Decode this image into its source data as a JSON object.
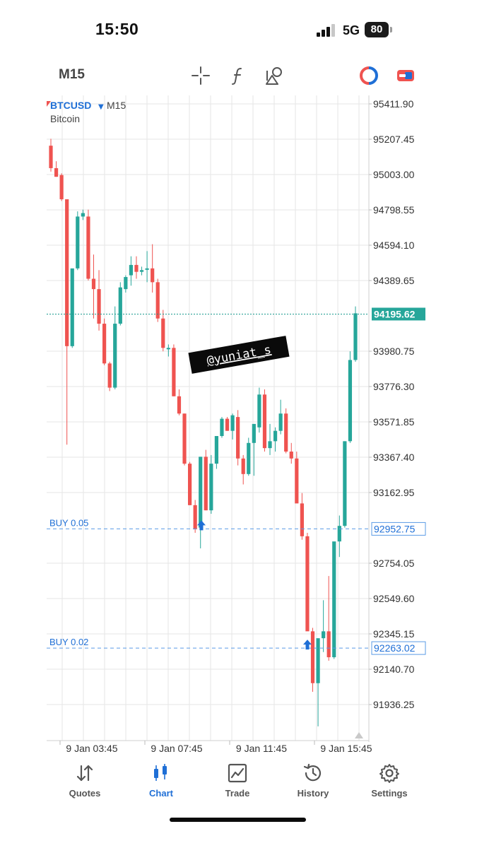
{
  "status": {
    "time": "15:50",
    "network": "5G",
    "battery": "80"
  },
  "toolbar": {
    "timeframe": "M15",
    "tools": [
      "crosshair-icon",
      "indicator-f-icon",
      "objects-icon",
      "trading-circle-icon",
      "swap-icon"
    ]
  },
  "chart": {
    "symbol": "BTCUSD",
    "period": "M15",
    "description": "Bitcoin",
    "watermark": "@yuniat_s",
    "current_price": "94195.62",
    "colors": {
      "bull": "#26a69a",
      "bear": "#ef5350",
      "position": "#1f6fd6",
      "grid": "#e6e6e6"
    },
    "price_ticks": [
      "95411.90",
      "95207.45",
      "95003.00",
      "94798.55",
      "94594.10",
      "94389.65",
      "93980.75",
      "93776.30",
      "93571.85",
      "93367.40",
      "93162.95",
      "92754.05",
      "92549.60",
      "92345.15",
      "92140.70",
      "91936.25"
    ],
    "time_labels": [
      "9 Jan 03:45",
      "9 Jan 07:45",
      "9 Jan 11:45",
      "9 Jan 15:45"
    ],
    "positions": [
      {
        "label": "BUY 0.05",
        "price": "92952.75"
      },
      {
        "label": "BUY 0.02",
        "price": "92263.02"
      }
    ]
  },
  "chart_data": {
    "type": "candlestick",
    "symbol": "BTCUSD",
    "timeframe": "M15",
    "time_labels": [
      "9 Jan 03:45",
      "9 Jan 07:45",
      "9 Jan 11:45",
      "9 Jan 15:45"
    ],
    "ylim": [
      91790,
      95470
    ],
    "current_price": 94195.62,
    "positions": [
      {
        "side": "BUY",
        "volume": 0.05,
        "price": 92952.75
      },
      {
        "side": "BUY",
        "volume": 0.02,
        "price": 92263.02
      }
    ],
    "candles": [
      {
        "o": 95170,
        "h": 95210,
        "l": 95020,
        "c": 95040
      },
      {
        "o": 95040,
        "h": 95080,
        "l": 94990,
        "c": 94990
      },
      {
        "o": 95000,
        "h": 95010,
        "l": 94850,
        "c": 94860
      },
      {
        "o": 94860,
        "h": 94860,
        "l": 93440,
        "c": 94010
      },
      {
        "o": 94010,
        "h": 94450,
        "l": 94000,
        "c": 94460
      },
      {
        "o": 94460,
        "h": 94790,
        "l": 94450,
        "c": 94760
      },
      {
        "o": 94760,
        "h": 94800,
        "l": 94740,
        "c": 94780
      },
      {
        "o": 94760,
        "h": 94800,
        "l": 94390,
        "c": 94400
      },
      {
        "o": 94400,
        "h": 94540,
        "l": 94170,
        "c": 94340
      },
      {
        "o": 94340,
        "h": 94450,
        "l": 94100,
        "c": 94140
      },
      {
        "o": 94140,
        "h": 94170,
        "l": 93900,
        "c": 93910
      },
      {
        "o": 93910,
        "h": 93920,
        "l": 93750,
        "c": 93770
      },
      {
        "o": 93770,
        "h": 94240,
        "l": 93760,
        "c": 94140
      },
      {
        "o": 94140,
        "h": 94380,
        "l": 94130,
        "c": 94350
      },
      {
        "o": 94340,
        "h": 94420,
        "l": 94320,
        "c": 94410
      },
      {
        "o": 94420,
        "h": 94530,
        "l": 94360,
        "c": 94480
      },
      {
        "o": 94480,
        "h": 94530,
        "l": 94400,
        "c": 94440
      },
      {
        "o": 94440,
        "h": 94470,
        "l": 94420,
        "c": 94450
      },
      {
        "o": 94460,
        "h": 94560,
        "l": 94380,
        "c": 94460
      },
      {
        "o": 94460,
        "h": 94600,
        "l": 94320,
        "c": 94380
      },
      {
        "o": 94380,
        "h": 94400,
        "l": 94150,
        "c": 94170
      },
      {
        "o": 94170,
        "h": 94220,
        "l": 93980,
        "c": 94000
      },
      {
        "o": 94000,
        "h": 94020,
        "l": 93950,
        "c": 94000
      },
      {
        "o": 94000,
        "h": 94020,
        "l": 93720,
        "c": 93720
      },
      {
        "o": 93720,
        "h": 93760,
        "l": 93610,
        "c": 93620
      },
      {
        "o": 93620,
        "h": 93620,
        "l": 93320,
        "c": 93330
      },
      {
        "o": 93330,
        "h": 93340,
        "l": 93090,
        "c": 93090
      },
      {
        "o": 93090,
        "h": 93120,
        "l": 92930,
        "c": 92950
      },
      {
        "o": 92960,
        "h": 93370,
        "l": 92840,
        "c": 93370
      },
      {
        "o": 93370,
        "h": 93410,
        "l": 93060,
        "c": 93060
      },
      {
        "o": 93060,
        "h": 93380,
        "l": 93040,
        "c": 93330
      },
      {
        "o": 93330,
        "h": 93480,
        "l": 93300,
        "c": 93490
      },
      {
        "o": 93490,
        "h": 93600,
        "l": 93480,
        "c": 93590
      },
      {
        "o": 93590,
        "h": 93600,
        "l": 93520,
        "c": 93520
      },
      {
        "o": 93520,
        "h": 93620,
        "l": 93470,
        "c": 93610
      },
      {
        "o": 93600,
        "h": 93640,
        "l": 93320,
        "c": 93360
      },
      {
        "o": 93360,
        "h": 93380,
        "l": 93210,
        "c": 93270
      },
      {
        "o": 93270,
        "h": 93480,
        "l": 93260,
        "c": 93450
      },
      {
        "o": 93450,
        "h": 93550,
        "l": 93260,
        "c": 93560
      },
      {
        "o": 93540,
        "h": 93770,
        "l": 93510,
        "c": 93730
      },
      {
        "o": 93730,
        "h": 93760,
        "l": 93400,
        "c": 93420
      },
      {
        "o": 93420,
        "h": 93560,
        "l": 93380,
        "c": 93460
      },
      {
        "o": 93460,
        "h": 93540,
        "l": 93400,
        "c": 93520
      },
      {
        "o": 93520,
        "h": 93700,
        "l": 93500,
        "c": 93620
      },
      {
        "o": 93620,
        "h": 93650,
        "l": 93390,
        "c": 93400
      },
      {
        "o": 93400,
        "h": 93450,
        "l": 93330,
        "c": 93360
      },
      {
        "o": 93360,
        "h": 93400,
        "l": 93110,
        "c": 93100
      },
      {
        "o": 93100,
        "h": 93160,
        "l": 92890,
        "c": 92910
      },
      {
        "o": 92910,
        "h": 92930,
        "l": 92380,
        "c": 92360
      },
      {
        "o": 92360,
        "h": 92380,
        "l": 92010,
        "c": 92060
      },
      {
        "o": 92060,
        "h": 92310,
        "l": 91810,
        "c": 92320
      },
      {
        "o": 92320,
        "h": 92540,
        "l": 92240,
        "c": 92360
      },
      {
        "o": 92360,
        "h": 92680,
        "l": 92190,
        "c": 92210
      },
      {
        "o": 92210,
        "h": 92870,
        "l": 92200,
        "c": 92880
      },
      {
        "o": 92880,
        "h": 93030,
        "l": 92790,
        "c": 92970
      },
      {
        "o": 92970,
        "h": 93460,
        "l": 92960,
        "c": 93460
      },
      {
        "o": 93460,
        "h": 93980,
        "l": 93450,
        "c": 93930
      },
      {
        "o": 93930,
        "h": 94240,
        "l": 93920,
        "c": 94200
      }
    ]
  },
  "nav": {
    "items": [
      {
        "key": "quotes",
        "label": "Quotes"
      },
      {
        "key": "chart",
        "label": "Chart"
      },
      {
        "key": "trade",
        "label": "Trade"
      },
      {
        "key": "history",
        "label": "History"
      },
      {
        "key": "settings",
        "label": "Settings"
      }
    ]
  }
}
